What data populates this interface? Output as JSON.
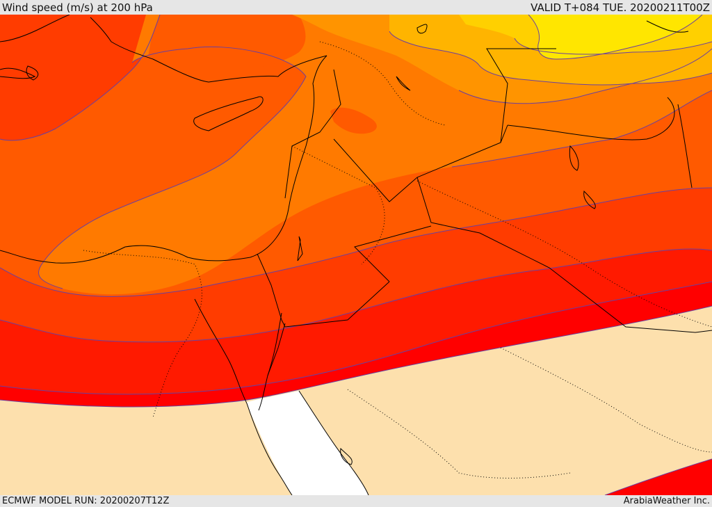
{
  "header": {
    "title": "Wind speed (m/s) at 200 hPa",
    "valid": "VALID T+084 TUE. 20200211T00Z"
  },
  "footer": {
    "model_run": "ECMWF MODEL RUN: 20200207T12Z",
    "credit": "ArabiaWeather Inc."
  },
  "map": {
    "variable": "wind speed",
    "level_hpa": 200,
    "region": "Eastern Mediterranean / Middle East",
    "shading_bands": [
      {
        "id": "band-calm",
        "color": "#fde0ad"
      },
      {
        "id": "band-1",
        "color": "#ff0000"
      },
      {
        "id": "band-2",
        "color": "#ff1a00"
      },
      {
        "id": "band-3",
        "color": "#ff3c00"
      },
      {
        "id": "band-4",
        "color": "#ff5a00"
      },
      {
        "id": "band-5",
        "color": "#ff7a00"
      },
      {
        "id": "band-6",
        "color": "#ff9400"
      },
      {
        "id": "band-7",
        "color": "#ffb400"
      },
      {
        "id": "band-8",
        "color": "#ffd000"
      },
      {
        "id": "band-9",
        "color": "#ffe600"
      }
    ],
    "sea_color": "#ffffff",
    "contour_line_color": "#6a3fa0",
    "coastline_color": "#000000"
  }
}
